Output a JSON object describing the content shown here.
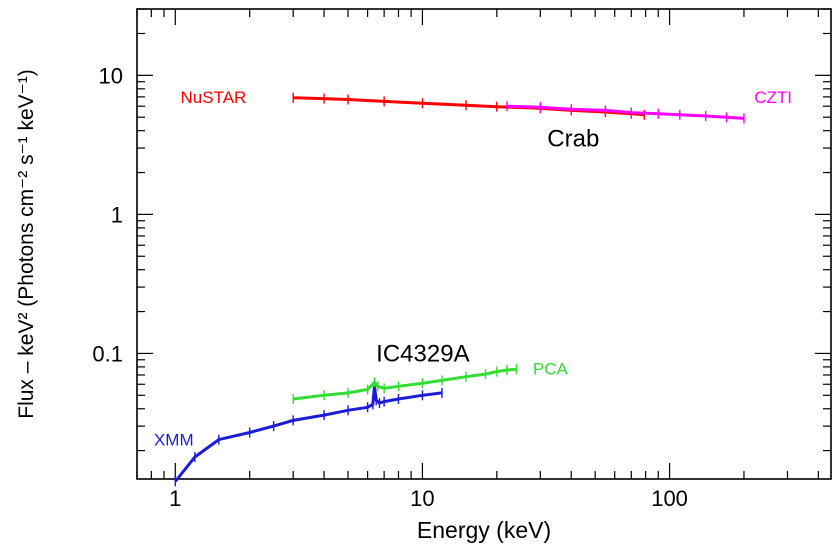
{
  "chart_data": {
    "type": "line",
    "xlabel": "Energy (keV)",
    "ylabel": "Flux – keV² (Photons cm⁻² s⁻¹ keV⁻¹)",
    "x_scale": "log",
    "y_scale": "log",
    "xlim": [
      0.7,
      450
    ],
    "ylim": [
      0.0125,
      30
    ],
    "x_ticks": [
      {
        "v": 1,
        "label": "1"
      },
      {
        "v": 10,
        "label": "10"
      },
      {
        "v": 100,
        "label": "100"
      }
    ],
    "y_ticks": [
      {
        "v": 10,
        "label": "10"
      },
      {
        "v": 1,
        "label": "1"
      },
      {
        "v": 0.1,
        "label": "0.1"
      }
    ],
    "annotations": [
      {
        "text": "Crab",
        "x": 32,
        "y": 3.5,
        "color": "#000000",
        "size": 24
      },
      {
        "text": "IC4329A",
        "x": 6.5,
        "y": 0.1,
        "color": "#000000",
        "size": 24
      }
    ],
    "series": [
      {
        "name": "NuSTAR",
        "color": "#ff0000",
        "label_x": 1.05,
        "label_y": 7.0,
        "x": [
          3,
          4,
          5,
          7,
          10,
          15,
          20,
          30,
          40,
          55,
          70,
          79
        ],
        "y": [
          6.9,
          6.8,
          6.7,
          6.5,
          6.3,
          6.1,
          5.95,
          5.8,
          5.6,
          5.45,
          5.3,
          5.2
        ]
      },
      {
        "name": "CZTI",
        "color": "#ff00ff",
        "label_x": 220,
        "label_y": 7.0,
        "x": [
          22,
          30,
          40,
          55,
          70,
          90,
          110,
          140,
          170,
          200
        ],
        "y": [
          6.0,
          5.9,
          5.7,
          5.6,
          5.4,
          5.3,
          5.2,
          5.1,
          5.0,
          4.9
        ]
      },
      {
        "name": "XMM",
        "color": "#1c1cd6",
        "label_x": 0.82,
        "label_y": 0.024,
        "x": [
          1.0,
          1.2,
          1.5,
          2.0,
          2.5,
          3.0,
          4.0,
          5.0,
          6.0,
          6.3,
          6.4,
          6.5,
          6.7,
          7.0,
          8.0,
          10.0,
          12.0
        ],
        "y": [
          0.012,
          0.018,
          0.024,
          0.027,
          0.03,
          0.033,
          0.036,
          0.039,
          0.041,
          0.043,
          0.058,
          0.046,
          0.044,
          0.045,
          0.047,
          0.05,
          0.052
        ]
      },
      {
        "name": "PCA",
        "color": "#33dd33",
        "label_x": 28,
        "label_y": 0.078,
        "x": [
          3,
          4,
          5,
          6,
          6.4,
          6.6,
          7,
          8,
          10,
          12,
          15,
          18,
          20,
          22,
          24
        ],
        "y": [
          0.047,
          0.05,
          0.052,
          0.055,
          0.062,
          0.058,
          0.056,
          0.058,
          0.061,
          0.064,
          0.068,
          0.071,
          0.074,
          0.076,
          0.077
        ]
      }
    ]
  }
}
